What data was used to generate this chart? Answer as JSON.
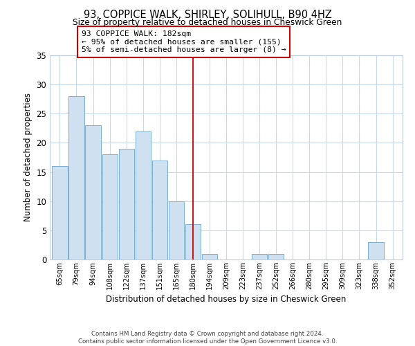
{
  "title": "93, COPPICE WALK, SHIRLEY, SOLIHULL, B90 4HZ",
  "subtitle": "Size of property relative to detached houses in Cheswick Green",
  "xlabel": "Distribution of detached houses by size in Cheswick Green",
  "ylabel": "Number of detached properties",
  "bar_labels": [
    "65sqm",
    "79sqm",
    "94sqm",
    "108sqm",
    "122sqm",
    "137sqm",
    "151sqm",
    "165sqm",
    "180sqm",
    "194sqm",
    "209sqm",
    "223sqm",
    "237sqm",
    "252sqm",
    "266sqm",
    "280sqm",
    "295sqm",
    "309sqm",
    "323sqm",
    "338sqm",
    "352sqm"
  ],
  "bar_values": [
    16,
    28,
    23,
    18,
    19,
    22,
    17,
    10,
    6,
    1,
    0,
    0,
    1,
    1,
    0,
    0,
    0,
    0,
    0,
    3,
    0
  ],
  "bar_color": "#cfe0f0",
  "bar_edge_color": "#7bafd4",
  "vline_x_idx": 8,
  "vline_color": "#cc0000",
  "ylim": [
    0,
    35
  ],
  "yticks": [
    0,
    5,
    10,
    15,
    20,
    25,
    30,
    35
  ],
  "annotation_title": "93 COPPICE WALK: 182sqm",
  "annotation_line1": "← 95% of detached houses are smaller (155)",
  "annotation_line2": "5% of semi-detached houses are larger (8) →",
  "annotation_box_color": "#ffffff",
  "annotation_box_edge": "#cc0000",
  "footer_line1": "Contains HM Land Registry data © Crown copyright and database right 2024.",
  "footer_line2": "Contains public sector information licensed under the Open Government Licence v3.0.",
  "background_color": "#ffffff",
  "grid_color": "#c8d8e8"
}
